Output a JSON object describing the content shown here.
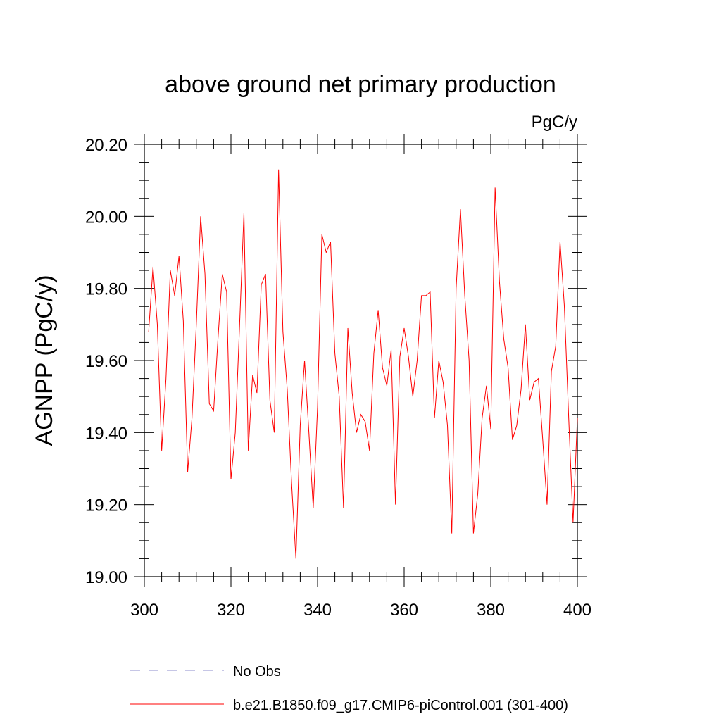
{
  "chart_data": {
    "type": "line",
    "title": "above ground net primary production",
    "units_label": "PgC/y",
    "xlabel": "",
    "ylabel": "AGNPP  (PgC/y)",
    "xlim": [
      300,
      400
    ],
    "ylim": [
      19.0,
      20.2
    ],
    "x_ticks": [
      300,
      320,
      340,
      360,
      380,
      400
    ],
    "x_tick_labels": [
      "300",
      "320",
      "340",
      "360",
      "380",
      "400"
    ],
    "y_ticks": [
      19.0,
      19.2,
      19.4,
      19.6,
      19.8,
      20.0,
      20.2
    ],
    "y_tick_labels": [
      "19.00",
      "19.20",
      "19.40",
      "19.60",
      "19.80",
      "20.00",
      "20.20"
    ],
    "grid": false,
    "series": [
      {
        "name": "b.e21.B1850.f09_g17.CMIP6-piControl.001 (301-400)",
        "color": "#ff0000",
        "style": "solid",
        "x": [
          301,
          302,
          303,
          304,
          305,
          306,
          307,
          308,
          309,
          310,
          311,
          312,
          313,
          314,
          315,
          316,
          317,
          318,
          319,
          320,
          321,
          322,
          323,
          324,
          325,
          326,
          327,
          328,
          329,
          330,
          331,
          332,
          333,
          334,
          335,
          336,
          337,
          338,
          339,
          340,
          341,
          342,
          343,
          344,
          345,
          346,
          347,
          348,
          349,
          350,
          351,
          352,
          353,
          354,
          355,
          356,
          357,
          358,
          359,
          360,
          361,
          362,
          363,
          364,
          365,
          366,
          367,
          368,
          369,
          370,
          371,
          372,
          373,
          374,
          375,
          376,
          377,
          378,
          379,
          380,
          381,
          382,
          383,
          384,
          385,
          386,
          387,
          388,
          389,
          390,
          391,
          392,
          393,
          394,
          395,
          396,
          397,
          398,
          399,
          400
        ],
        "values": [
          19.68,
          19.86,
          19.7,
          19.35,
          19.55,
          19.85,
          19.78,
          19.89,
          19.71,
          19.29,
          19.44,
          19.7,
          20.0,
          19.84,
          19.48,
          19.46,
          19.66,
          19.84,
          19.79,
          19.27,
          19.4,
          19.7,
          20.01,
          19.35,
          19.56,
          19.51,
          19.81,
          19.84,
          19.49,
          19.4,
          20.13,
          19.68,
          19.52,
          19.26,
          19.05,
          19.42,
          19.6,
          19.4,
          19.19,
          19.47,
          19.95,
          19.9,
          19.93,
          19.62,
          19.5,
          19.19,
          19.69,
          19.51,
          19.4,
          19.45,
          19.43,
          19.35,
          19.62,
          19.74,
          19.58,
          19.53,
          19.63,
          19.2,
          19.61,
          19.69,
          19.61,
          19.5,
          19.6,
          19.78,
          19.78,
          19.79,
          19.44,
          19.6,
          19.54,
          19.42,
          19.12,
          19.8,
          20.02,
          19.78,
          19.6,
          19.12,
          19.23,
          19.44,
          19.53,
          19.41,
          20.08,
          19.82,
          19.66,
          19.58,
          19.38,
          19.42,
          19.52,
          19.7,
          19.49,
          19.54,
          19.55,
          19.38,
          19.2,
          19.57,
          19.64,
          19.93,
          19.75,
          19.44,
          19.15,
          19.44
        ]
      }
    ],
    "legend": [
      {
        "label": "No Obs",
        "color": "#8c8ccc",
        "style": "dashed"
      },
      {
        "label": "b.e21.B1850.f09_g17.CMIP6-piControl.001 (301-400)",
        "color": "#ff0000",
        "style": "solid"
      }
    ],
    "legend_position": "bottom"
  }
}
